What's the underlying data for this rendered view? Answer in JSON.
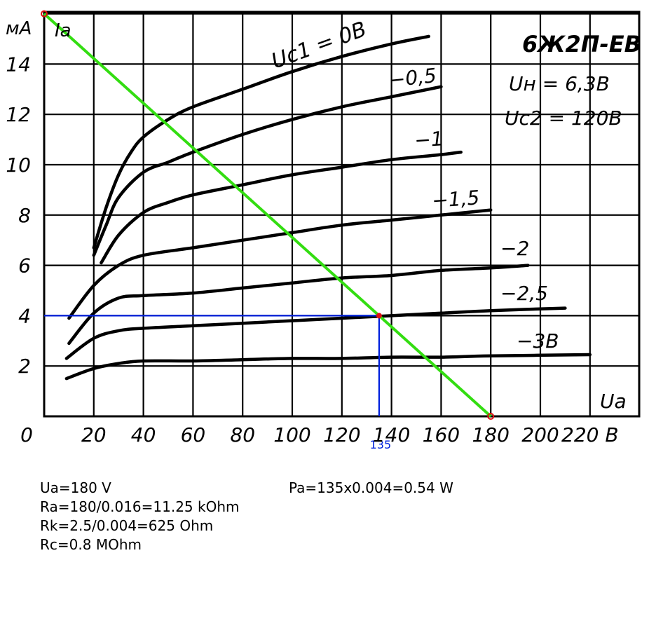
{
  "chart_data": {
    "type": "line",
    "title": "6Ж2П-ЕВ",
    "conditions": [
      "Uн = 6,3В",
      "Uc2 = 120В"
    ],
    "ylabel_unit": "мА",
    "ylabel_symbol": "Ia",
    "xlabel": "Ua",
    "x_ticks": [
      "0",
      "20",
      "40",
      "60",
      "80",
      "100",
      "120",
      "140",
      "160",
      "180",
      "200",
      "220 В"
    ],
    "y_ticks": [
      "2",
      "4",
      "6",
      "8",
      "10",
      "12",
      "14"
    ],
    "xlim": [
      0,
      240
    ],
    "ylim": [
      0,
      16.4
    ],
    "grid": true,
    "series": [
      {
        "name": "Uc1 = 0В",
        "label": "Uc1 = 0В",
        "x": [
          20,
          25,
          30,
          35,
          40,
          50,
          60,
          80,
          100,
          120,
          140,
          155
        ],
        "y": [
          6.7,
          8.3,
          9.6,
          10.5,
          11.1,
          11.8,
          12.3,
          13.0,
          13.7,
          14.3,
          14.8,
          15.1
        ]
      },
      {
        "name": "-0,5",
        "label": "−0,5",
        "x": [
          20,
          25,
          30,
          40,
          50,
          60,
          80,
          100,
          120,
          140,
          160
        ],
        "y": [
          6.4,
          7.6,
          8.7,
          9.7,
          10.1,
          10.5,
          11.2,
          11.8,
          12.3,
          12.7,
          13.1
        ]
      },
      {
        "name": "-1",
        "label": "−1",
        "x": [
          23,
          30,
          40,
          50,
          60,
          80,
          100,
          120,
          140,
          160,
          168
        ],
        "y": [
          6.1,
          7.2,
          8.1,
          8.5,
          8.8,
          9.2,
          9.6,
          9.9,
          10.2,
          10.4,
          10.5
        ]
      },
      {
        "name": "-1,5",
        "label": "−1,5",
        "x": [
          10,
          20,
          30,
          40,
          60,
          80,
          100,
          120,
          140,
          160,
          180
        ],
        "y": [
          3.9,
          5.2,
          6.0,
          6.4,
          6.7,
          7.0,
          7.3,
          7.6,
          7.8,
          8.0,
          8.2
        ]
      },
      {
        "name": "-2",
        "label": "−2",
        "x": [
          10,
          20,
          30,
          40,
          60,
          80,
          100,
          120,
          140,
          160,
          180,
          195
        ],
        "y": [
          2.9,
          4.1,
          4.7,
          4.8,
          4.9,
          5.1,
          5.3,
          5.5,
          5.6,
          5.8,
          5.9,
          6.0
        ]
      },
      {
        "name": "-2,5",
        "label": "−2,5",
        "x": [
          9,
          20,
          30,
          40,
          60,
          80,
          100,
          120,
          140,
          160,
          180,
          210
        ],
        "y": [
          2.3,
          3.1,
          3.4,
          3.5,
          3.6,
          3.7,
          3.8,
          3.9,
          4.0,
          4.1,
          4.2,
          4.3
        ]
      },
      {
        "name": "-3В",
        "label": "−3В",
        "x": [
          9,
          20,
          30,
          40,
          60,
          80,
          100,
          120,
          140,
          160,
          180,
          220
        ],
        "y": [
          1.5,
          1.9,
          2.1,
          2.2,
          2.2,
          2.25,
          2.3,
          2.3,
          2.35,
          2.35,
          2.4,
          2.45
        ]
      }
    ],
    "load_line": {
      "x": [
        0,
        180
      ],
      "y": [
        16,
        0
      ],
      "color": "#33dd11"
    },
    "operating_point": {
      "x": 135,
      "y": 4.0,
      "color": "#0022dd",
      "marker": "#dd1111",
      "label": "135"
    }
  },
  "calculations": {
    "ua": "Ua=180 V",
    "ra": "Ra=180/0.016=11.25 kOhm",
    "rk": "Rk=2.5/0.004=625 Ohm",
    "rc": "Rc=0.8 MOhm",
    "pa": "Pa=135x0.004=0.54 W"
  }
}
